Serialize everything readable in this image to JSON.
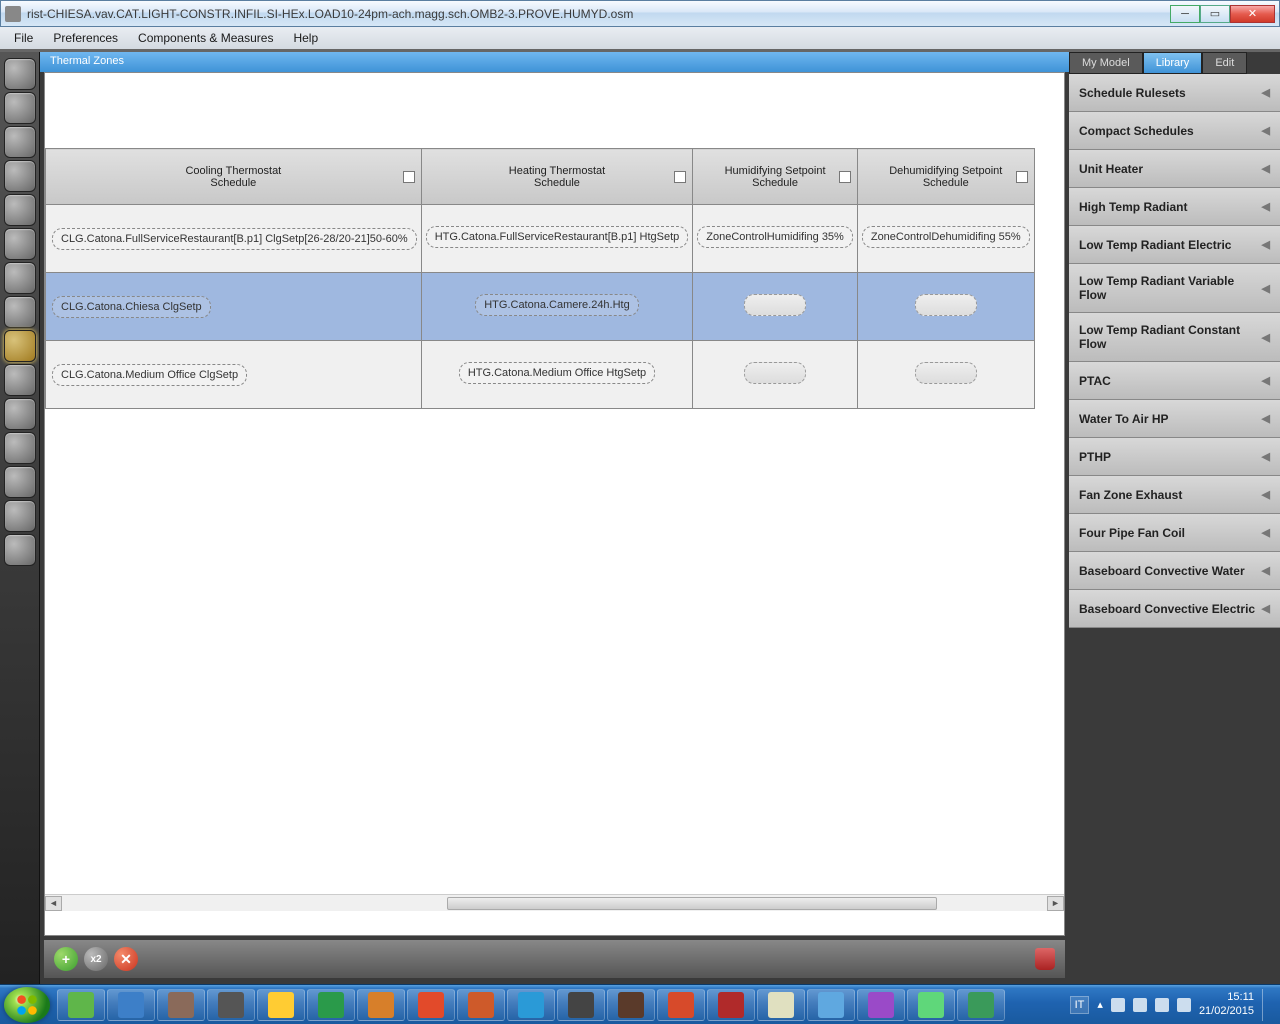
{
  "window": {
    "title": "rist-CHIESA.vav.CAT.LIGHT-CONSTR.INFIL.SI-HEx.LOAD10-24pm-ach.magg.sch.OMB2-3.PROVE.HUMYD.osm"
  },
  "menu": {
    "file": "File",
    "prefs": "Preferences",
    "comp": "Components & Measures",
    "help": "Help"
  },
  "tab": {
    "title": "Thermal Zones"
  },
  "table": {
    "headers": {
      "c1a": "Cooling Thermostat",
      "c1b": "Schedule",
      "c2a": "Heating Thermostat",
      "c2b": "Schedule",
      "c3a": "Humidifying Setpoint",
      "c3b": "Schedule",
      "c4a": "Dehumidifying Setpoint",
      "c4b": "Schedule"
    },
    "rows": [
      {
        "cooling": "CLG.Catona.FullServiceRestaurant[B.p1]  ClgSetp[26-28/20-21]50-60%",
        "heating": "HTG.Catona.FullServiceRestaurant[B.p1] HtgSetp",
        "humid": "ZoneControlHumidifing 35%",
        "dehumid": "ZoneControlDehumidifing 55%",
        "selected": false
      },
      {
        "cooling": "CLG.Catona.Chiesa ClgSetp",
        "heating": "HTG.Catona.Camere.24h.Htg",
        "humid": "",
        "dehumid": "",
        "selected": true
      },
      {
        "cooling": "CLG.Catona.Medium Office ClgSetp",
        "heating": "HTG.Catona.Medium Office HtgSetp",
        "humid": "",
        "dehumid": "",
        "selected": false
      }
    ]
  },
  "rightTabs": {
    "mymodel": "My Model",
    "library": "Library",
    "edit": "Edit"
  },
  "library": [
    "Schedule Rulesets",
    "Compact Schedules",
    "Unit Heater",
    "High Temp Radiant",
    "Low Temp Radiant Electric",
    "Low Temp Radiant Variable Flow",
    "Low Temp Radiant Constant Flow",
    "PTAC",
    "Water To Air HP",
    "PTHP",
    "Fan Zone Exhaust",
    "Four Pipe Fan Coil",
    "Baseboard Convective Water",
    "Baseboard Convective Electric"
  ],
  "toolbar": {
    "add": "+",
    "dup": "x2",
    "del": "✕"
  },
  "systray": {
    "lang": "IT",
    "time": "15:11",
    "date": "21/02/2015"
  },
  "taskbarColors": [
    "#5fb64a",
    "#3d7fc8",
    "#8a6a5a",
    "#555",
    "#ffcc33",
    "#2a9a4a",
    "#d77f2a",
    "#e24a2a",
    "#ce5a2a",
    "#2a9ad7",
    "#444",
    "#5a3a2a",
    "#d74a2a",
    "#b02a2a",
    "#e0e0c0",
    "#5fa8e0",
    "#9a4ac8",
    "#5fd77a",
    "#3a9a5a"
  ]
}
